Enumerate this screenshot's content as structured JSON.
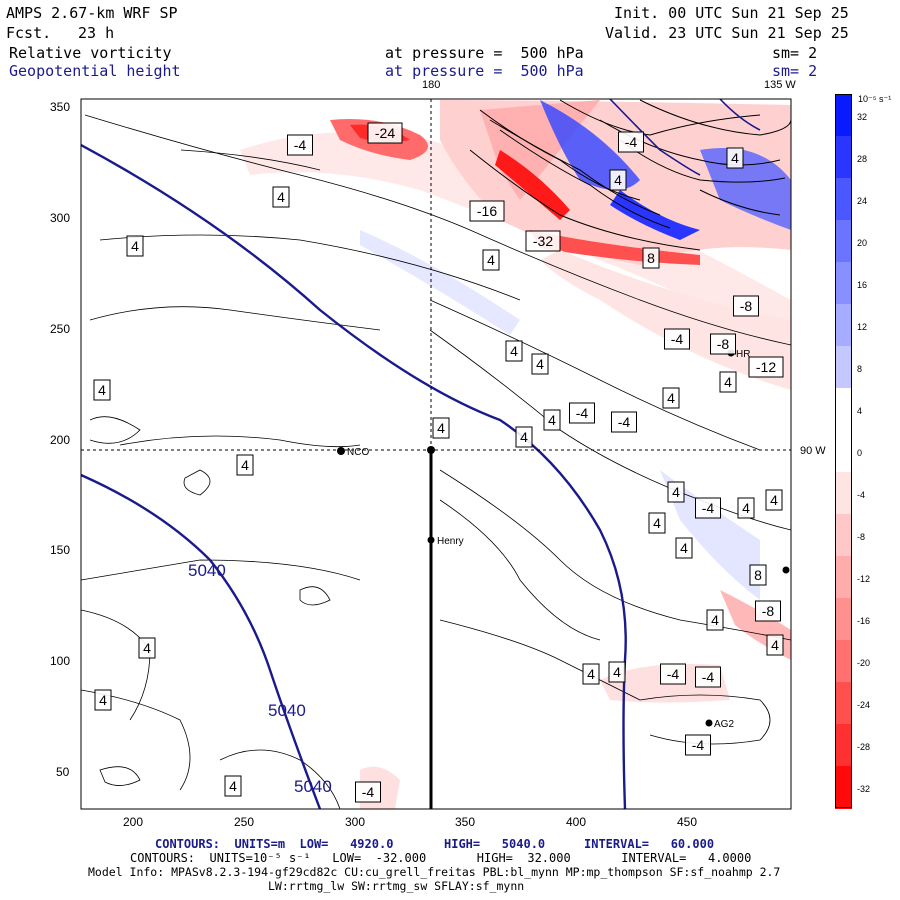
{
  "header": {
    "model": "AMPS 2.67-km WRF SP",
    "init": "Init. 00 UTC Sun 21 Sep 25",
    "fcst_label": "Fcst.",
    "fcst_value": "23 h",
    "valid": "Valid. 23 UTC Sun 21 Sep 25",
    "field1_name": "Relative vorticity",
    "field1_level": "at pressure =  500 hPa",
    "field1_smooth": "sm= 2",
    "field2_name": "Geopotential height",
    "field2_level": "at pressure =  500 hPa",
    "field2_smooth": "sm= 2"
  },
  "map": {
    "lon_labels": {
      "top_180": "180",
      "top_135w": "135 W",
      "right_90w": "90 W"
    },
    "x_ticks": [
      "200",
      "250",
      "300",
      "350",
      "400",
      "450"
    ],
    "y_ticks": [
      "350",
      "300",
      "250",
      "200",
      "150",
      "100",
      "50"
    ],
    "stations": {
      "nco": "NCO",
      "henry": "Henry",
      "hr": "HR",
      "ag2": "AG2"
    },
    "height_contour_label": "5040",
    "vort_labels": [
      "4",
      "-4",
      "-8",
      "-12",
      "-16",
      "-24",
      "-32",
      "8"
    ]
  },
  "colorbar": {
    "unit": "10⁻⁵ s⁻¹",
    "levels": [
      "32",
      "28",
      "24",
      "20",
      "16",
      "12",
      "8",
      "4",
      "0",
      "-4",
      "-8",
      "-12",
      "-16",
      "-20",
      "-24",
      "-28",
      "-32"
    ],
    "colors": [
      "#0a1aff",
      "#2a36ff",
      "#4c58ff",
      "#6a74ff",
      "#8890ff",
      "#a6acff",
      "#c4c8ff",
      "#ffffff",
      "#ffffff",
      "#ffe4e4",
      "#ffc8c8",
      "#ffacac",
      "#ff9090",
      "#ff7070",
      "#ff5050",
      "#ff3030",
      "#ff0a0a"
    ]
  },
  "footer": {
    "line1_a": "CONTOURS:  UNITS=m  LOW=   4920.0",
    "line1_b": "HIGH=   5040.0",
    "line1_c": "INTERVAL=   60.000",
    "line2": "CONTOURS:  UNITS=10⁻⁵ s⁻¹   LOW=  -32.000       HIGH=  32.000       INTERVAL=   4.0000",
    "line3": "Model Info: MPASv8.2.3-194-gf29cd82c CU:cu_grell_freitas PBL:bl_mynn MP:mp_thompson SF:sf_noahmp 2.7",
    "line4": "LW:rrtmg_lw SW:rrtmg_sw SFLAY:sf_mynn"
  }
}
